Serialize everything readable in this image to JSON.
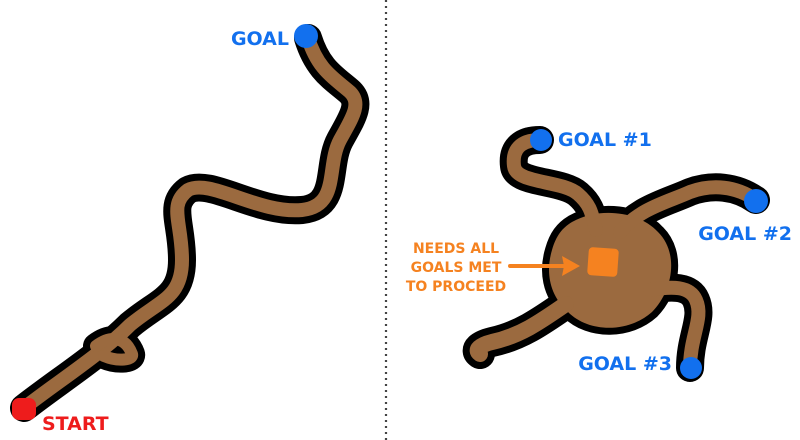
{
  "colors": {
    "path": "#9b6a3f",
    "outline": "#000000",
    "goal": "#1270ee",
    "start": "#ee1c1c",
    "gate": "#f58220",
    "divider": "#444444",
    "background": "#ffffff"
  },
  "left_panel": {
    "start_label": "START",
    "goal_label": "GOAL"
  },
  "right_panel": {
    "goals": [
      {
        "label": "GOAL #1"
      },
      {
        "label": "GOAL #2"
      },
      {
        "label": "GOAL #3"
      }
    ],
    "gate_note": [
      "NEEDS ALL",
      "GOALS MET",
      "TO PROCEED"
    ]
  }
}
